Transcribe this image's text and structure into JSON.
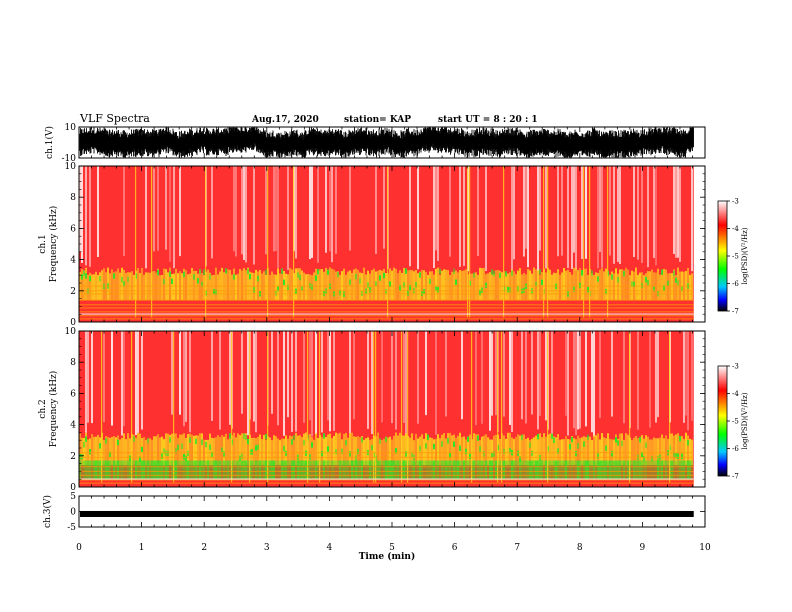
{
  "chart_data": {
    "type": "heatmap",
    "header": {
      "title": "VLF Spectra",
      "date": "Aug.17, 2020",
      "station": "station= KAP",
      "start": "start  UT  =   8  : 20 : 1"
    },
    "x_axis": {
      "label": "Time  (min)",
      "range": [
        0,
        10
      ],
      "ticks": [
        "0",
        "1",
        "2",
        "3",
        "4",
        "5",
        "6",
        "7",
        "8",
        "9",
        "10"
      ]
    },
    "waveform_top": {
      "ylabel": "ch.1(V)",
      "range": [
        -10,
        10
      ],
      "ticks": [
        "10",
        "-10"
      ],
      "x_end_min": 9.82
    },
    "spectrogram_1": {
      "ylabel_line1": "ch.1",
      "ylabel_line2": "Frequency  (kHz)",
      "range": [
        0,
        10
      ],
      "ticks": [
        "0",
        "2",
        "4",
        "6",
        "8",
        "10"
      ],
      "x_end_min": 9.82,
      "colorbar": {
        "label": "log(PSD)(V²/Hz)",
        "range": [
          -7,
          -3
        ],
        "ticks": [
          "-3",
          "-4",
          "-5",
          "-6",
          "-7"
        ]
      }
    },
    "spectrogram_2": {
      "ylabel_line1": "ch.2",
      "ylabel_line2": "Frequency  (kHz)",
      "range": [
        0,
        10
      ],
      "ticks": [
        "0",
        "2",
        "4",
        "6",
        "8",
        "10"
      ],
      "x_end_min": 9.82,
      "colorbar": {
        "label": "log(PSD)(V²/Hz)",
        "range": [
          -7,
          -3
        ],
        "ticks": [
          "-3",
          "-4",
          "-5",
          "-6",
          "-7"
        ]
      }
    },
    "waveform_bottom": {
      "ylabel": "ch.3(V)",
      "range": [
        -5,
        5
      ],
      "ticks": [
        "5",
        "0",
        "-5"
      ],
      "level_v": -0.8,
      "x_end_min": 9.82
    },
    "colors": {
      "background": "#ffffff",
      "spectrum_high": "#ff3030",
      "spectrum_mid": "#ffd21e",
      "spectrum_low": "#28e628",
      "colorbar_stops": [
        "#ffffff",
        "#ff0000",
        "#ffff00",
        "#00ff00",
        "#00c8ff",
        "#0000ff",
        "#000000"
      ]
    }
  }
}
